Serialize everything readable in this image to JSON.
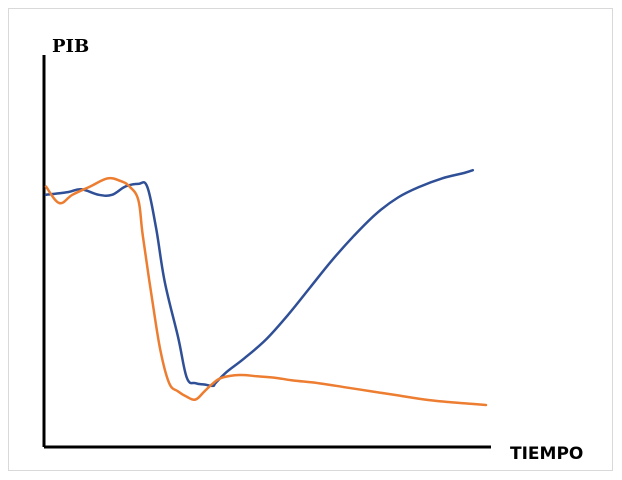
{
  "chart_data": {
    "type": "line",
    "title": "",
    "ylabel": "PIB",
    "xlabel": "TIEMPO",
    "xlim": [
      0,
      100
    ],
    "ylim": [
      0,
      100
    ],
    "grid": false,
    "legend": "none",
    "series": [
      {
        "color": "#2f4f96",
        "x": [
          0,
          5,
          8,
          12,
          15,
          18,
          21,
          23,
          25,
          27,
          30,
          32,
          34,
          36,
          38,
          38.5,
          41,
          45,
          50,
          55,
          60,
          65,
          70,
          75,
          80,
          85,
          90,
          95,
          97
        ],
        "y": [
          77,
          78,
          79,
          77,
          77,
          80,
          81,
          80,
          65,
          45,
          25,
          10,
          8,
          7.5,
          7,
          8,
          12,
          17,
          24,
          33,
          43,
          53,
          62,
          70,
          76,
          80,
          83,
          85,
          86
        ]
      },
      {
        "color": "#ed7d31",
        "x": [
          0,
          3,
          6,
          10,
          14,
          17,
          19,
          21,
          22,
          24,
          26,
          28,
          30,
          32,
          34,
          36,
          38,
          40,
          44,
          48,
          52,
          56,
          62,
          68,
          74,
          80,
          86,
          92,
          96,
          100
        ],
        "y": [
          80,
          74,
          77,
          80,
          83,
          82,
          80,
          75,
          62,
          40,
          20,
          8,
          5,
          3,
          2,
          5,
          8,
          10,
          11,
          10.5,
          10,
          9,
          8,
          6.5,
          5,
          3.5,
          2,
          1,
          0.5,
          0
        ]
      }
    ]
  }
}
